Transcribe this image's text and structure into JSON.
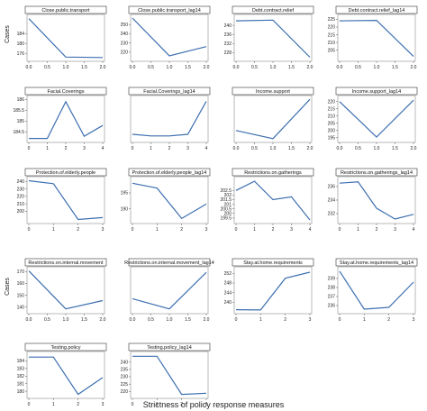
{
  "figure": {
    "x_axis_label": "Strictness of policy response measures",
    "y_axis_label": "Cases",
    "line_color": "#3d6fb0"
  },
  "chart_data": [
    {
      "type": "line",
      "title": "Close.public.transport",
      "x": [
        0,
        1,
        2
      ],
      "y": [
        190,
        174.5,
        174.3
      ],
      "xticks": [
        "0.0",
        "0.5",
        "1.0",
        "1.5",
        "2.0"
      ],
      "yticks": [
        176,
        180,
        184
      ],
      "xlim": [
        0,
        2
      ],
      "ylim": [
        173.5,
        191
      ]
    },
    {
      "type": "line",
      "title": "Close.public.transport_lag14",
      "x": [
        0,
        1,
        2
      ],
      "y": [
        257,
        216,
        226
      ],
      "xticks": [
        "0.0",
        "0.5",
        "1.0",
        "1.5",
        "2.0"
      ],
      "yticks": [
        220,
        230,
        240,
        250
      ],
      "xlim": [
        0,
        2
      ],
      "ylim": [
        212,
        259
      ]
    },
    {
      "type": "line",
      "title": "Debt.contract.relief",
      "x": [
        0,
        1,
        2
      ],
      "y": [
        242,
        242.3,
        226
      ],
      "xticks": [
        "0.0",
        "0.5",
        "1.0",
        "1.5",
        "2.0"
      ],
      "yticks": [
        228,
        232,
        236,
        240
      ],
      "xlim": [
        0,
        2
      ],
      "ylim": [
        225,
        244
      ]
    },
    {
      "type": "line",
      "title": "Debt.contract.relief_lag14",
      "x": [
        0,
        1,
        2
      ],
      "y": [
        224,
        224.3,
        201
      ],
      "xticks": [
        "0.0",
        "0.5",
        "1.0",
        "1.5",
        "2.0"
      ],
      "yticks": [
        205,
        210,
        215,
        220,
        225
      ],
      "xlim": [
        0,
        2
      ],
      "ylim": [
        199,
        227
      ]
    },
    {
      "type": "line",
      "title": "Facial.Coverings",
      "x": [
        0,
        1,
        2,
        3,
        4
      ],
      "y": [
        184.2,
        184.2,
        185.9,
        184.3,
        184.8
      ],
      "xticks": [
        "0",
        "1",
        "2",
        "3",
        "4"
      ],
      "yticks": [
        184.5,
        185.0,
        185.5,
        186.0
      ],
      "xlim": [
        0,
        4
      ],
      "ylim": [
        184.1,
        186.1
      ]
    },
    {
      "type": "line",
      "title": "Facial.Coverings_lag14",
      "x": [
        0,
        1,
        2,
        3,
        4
      ],
      "y": [
        184.3,
        184.1,
        184.1,
        184.3,
        188.5
      ],
      "xticks": [
        "0",
        "1",
        "2",
        "3",
        "4"
      ],
      "yticks": [],
      "xlim": [
        0,
        4
      ],
      "ylim": [
        183.5,
        189
      ]
    },
    {
      "type": "line",
      "title": "Income.support",
      "x": [
        0,
        1,
        2
      ],
      "y": [
        175.5,
        171.5,
        191
      ],
      "xticks": [
        "0.0",
        "0.5",
        "1.0",
        "1.5",
        "2.0"
      ],
      "yticks": [],
      "xlim": [
        0,
        2
      ],
      "ylim": [
        170.5,
        192
      ]
    },
    {
      "type": "line",
      "title": "Income.support_lag14",
      "x": [
        0,
        1,
        2
      ],
      "y": [
        220,
        195.5,
        221
      ],
      "xticks": [
        "0.0",
        "0.5",
        "1.0",
        "1.5",
        "2.0"
      ],
      "yticks": [
        195,
        200,
        205,
        210,
        215,
        220
      ],
      "xlim": [
        0,
        2
      ],
      "ylim": [
        193,
        223
      ]
    },
    {
      "type": "line",
      "title": "Protection.of.elderly.people",
      "x": [
        0,
        1,
        2,
        3
      ],
      "y": [
        241,
        237,
        189,
        191.5
      ],
      "xticks": [
        "0",
        "1",
        "2",
        "3"
      ],
      "yticks": [
        200,
        210,
        220,
        230,
        240
      ],
      "xlim": [
        0,
        3
      ],
      "ylim": [
        186,
        244
      ]
    },
    {
      "type": "line",
      "title": "Protection.of.elderly.people_lag14",
      "x": [
        0,
        1,
        2,
        3
      ],
      "y": [
        198,
        196.5,
        187,
        191.5
      ],
      "xticks": [
        "0",
        "1",
        "2",
        "3"
      ],
      "yticks": [
        190,
        195
      ],
      "xlim": [
        0,
        3
      ],
      "ylim": [
        186,
        199.5
      ]
    },
    {
      "type": "line",
      "title": "Restrictions.on.gatherings",
      "x": [
        0,
        1,
        2,
        3,
        4
      ],
      "y": [
        202.5,
        203.5,
        201.5,
        201.8,
        199.3
      ],
      "xticks": [
        "0",
        "1",
        "2",
        "3",
        "4"
      ],
      "yticks": [
        199.5,
        200.0,
        200.5,
        201.0,
        201.5,
        202.0,
        202.5
      ],
      "xlim": [
        0,
        4
      ],
      "ylim": [
        199.1,
        203.8
      ]
    },
    {
      "type": "line",
      "title": "Restrictions.on.gatherings_lag14",
      "x": [
        0,
        1,
        2,
        3,
        4
      ],
      "y": [
        236.5,
        236.7,
        232.8,
        231.2,
        231.9
      ],
      "xticks": [
        "0",
        "1",
        "2",
        "3",
        "4"
      ],
      "yticks": [
        232,
        234,
        236
      ],
      "xlim": [
        0,
        4
      ],
      "ylim": [
        230.8,
        237.2
      ]
    },
    {
      "type": "line",
      "title": "Restrictions.on.internal.movement",
      "x": [
        0,
        1,
        2
      ],
      "y": [
        170.5,
        138.5,
        145.5
      ],
      "xticks": [
        "0.0",
        "0.5",
        "1.0",
        "1.5",
        "2.0"
      ],
      "yticks": [
        140,
        150,
        160,
        170
      ],
      "xlim": [
        0,
        2
      ],
      "ylim": [
        136,
        172.5
      ]
    },
    {
      "type": "line",
      "title": "Restrictions.on.internal.movement_lag14",
      "x": [
        0,
        1,
        2
      ],
      "y": [
        186,
        183.3,
        193
      ],
      "xticks": [
        "0.0",
        "0.5",
        "1.0",
        "1.5",
        "2.0"
      ],
      "yticks": [],
      "xlim": [
        0,
        2
      ],
      "ylim": [
        182.5,
        194
      ]
    },
    {
      "type": "line",
      "title": "Stay.at.home.requirements",
      "x": [
        0,
        1,
        2,
        3
      ],
      "y": [
        236.9,
        236.8,
        250,
        252.5
      ],
      "xticks": [
        "0",
        "1",
        "2",
        "3"
      ],
      "yticks": [
        240,
        244,
        248,
        252
      ],
      "xlim": [
        0,
        3
      ],
      "ylim": [
        236,
        254
      ]
    },
    {
      "type": "line",
      "title": "Stay.at.home.requirements_lag14",
      "x": [
        0,
        1,
        2,
        3
      ],
      "y": [
        239.8,
        235.6,
        235.8,
        238.6
      ],
      "xticks": [
        "0",
        "1",
        "2",
        "3"
      ],
      "yticks": [
        236,
        237,
        238,
        239
      ],
      "xlim": [
        0,
        3
      ],
      "ylim": [
        235.3,
        240.1
      ]
    },
    {
      "type": "line",
      "title": "Testing.policy",
      "x": [
        0,
        1,
        2,
        3
      ],
      "y": [
        184.5,
        184.5,
        179.6,
        181.8
      ],
      "xticks": [
        "0",
        "1",
        "2",
        "3"
      ],
      "yticks": [
        180,
        181,
        182,
        183,
        184
      ],
      "xlim": [
        0,
        3
      ],
      "ylim": [
        179.3,
        185
      ]
    },
    {
      "type": "line",
      "title": "Testing.policy_lag14",
      "x": [
        0,
        1,
        2,
        3
      ],
      "y": [
        244,
        244,
        218,
        218.8
      ],
      "xticks": [
        "0",
        "1",
        "2",
        "3"
      ],
      "yticks": [
        220,
        225,
        230,
        235,
        240
      ],
      "xlim": [
        0,
        3
      ],
      "ylim": [
        216.5,
        246
      ]
    }
  ]
}
